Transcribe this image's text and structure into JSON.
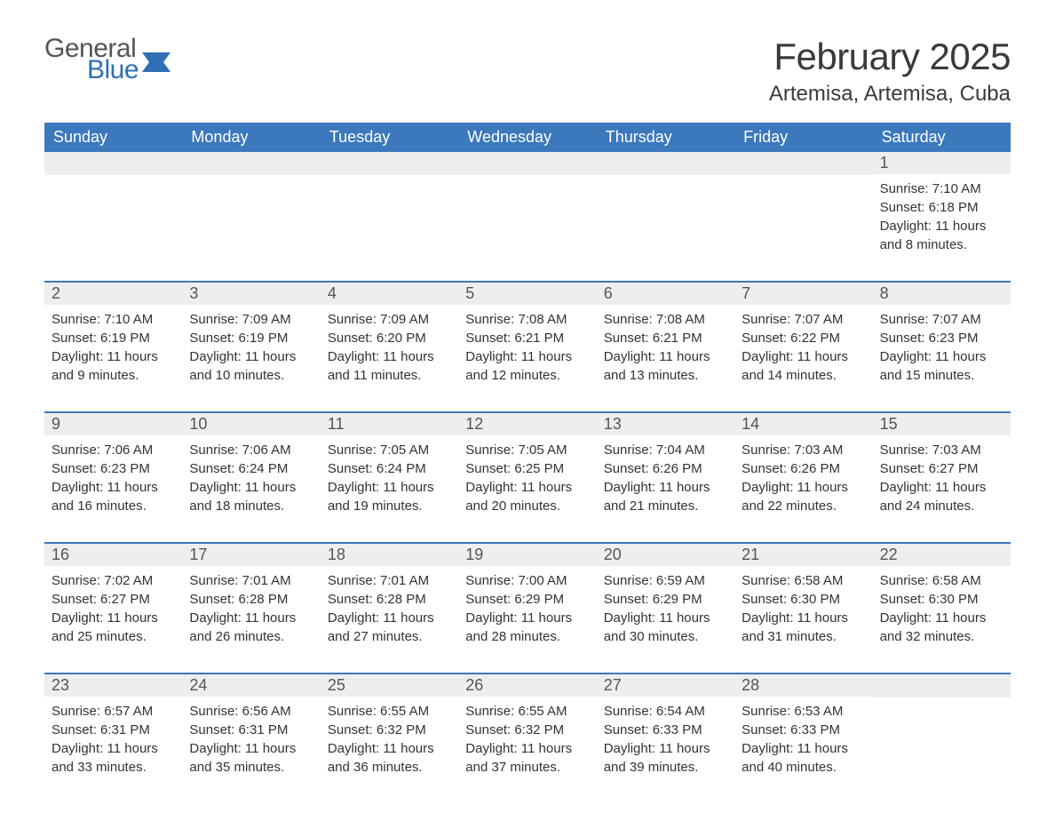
{
  "brand": {
    "word1": "General",
    "word2": "Blue",
    "color_general": "#555555",
    "color_blue": "#2e6fb5",
    "flag_color": "#2e6fb5"
  },
  "title": {
    "month_year": "February 2025",
    "location": "Artemisa, Artemisa, Cuba",
    "title_fontsize": 42,
    "location_fontsize": 24,
    "text_color": "#3a3a3a"
  },
  "styling": {
    "header_bg": "#3b78bc",
    "header_text": "#ffffff",
    "daynum_bg": "#eceeef",
    "daynum_text": "#555555",
    "body_text": "#333333",
    "row_divider": "#3b78bc",
    "page_bg": "#ffffff",
    "weekday_fontsize": 18,
    "daynum_fontsize": 18,
    "body_fontsize": 15
  },
  "weekdays": [
    "Sunday",
    "Monday",
    "Tuesday",
    "Wednesday",
    "Thursday",
    "Friday",
    "Saturday"
  ],
  "weeks": [
    [
      {
        "empty": true
      },
      {
        "empty": true
      },
      {
        "empty": true
      },
      {
        "empty": true
      },
      {
        "empty": true
      },
      {
        "empty": true
      },
      {
        "day": "1",
        "sunrise": "Sunrise: 7:10 AM",
        "sunset": "Sunset: 6:18 PM",
        "daylight1": "Daylight: 11 hours",
        "daylight2": "and 8 minutes."
      }
    ],
    [
      {
        "day": "2",
        "sunrise": "Sunrise: 7:10 AM",
        "sunset": "Sunset: 6:19 PM",
        "daylight1": "Daylight: 11 hours",
        "daylight2": "and 9 minutes."
      },
      {
        "day": "3",
        "sunrise": "Sunrise: 7:09 AM",
        "sunset": "Sunset: 6:19 PM",
        "daylight1": "Daylight: 11 hours",
        "daylight2": "and 10 minutes."
      },
      {
        "day": "4",
        "sunrise": "Sunrise: 7:09 AM",
        "sunset": "Sunset: 6:20 PM",
        "daylight1": "Daylight: 11 hours",
        "daylight2": "and 11 minutes."
      },
      {
        "day": "5",
        "sunrise": "Sunrise: 7:08 AM",
        "sunset": "Sunset: 6:21 PM",
        "daylight1": "Daylight: 11 hours",
        "daylight2": "and 12 minutes."
      },
      {
        "day": "6",
        "sunrise": "Sunrise: 7:08 AM",
        "sunset": "Sunset: 6:21 PM",
        "daylight1": "Daylight: 11 hours",
        "daylight2": "and 13 minutes."
      },
      {
        "day": "7",
        "sunrise": "Sunrise: 7:07 AM",
        "sunset": "Sunset: 6:22 PM",
        "daylight1": "Daylight: 11 hours",
        "daylight2": "and 14 minutes."
      },
      {
        "day": "8",
        "sunrise": "Sunrise: 7:07 AM",
        "sunset": "Sunset: 6:23 PM",
        "daylight1": "Daylight: 11 hours",
        "daylight2": "and 15 minutes."
      }
    ],
    [
      {
        "day": "9",
        "sunrise": "Sunrise: 7:06 AM",
        "sunset": "Sunset: 6:23 PM",
        "daylight1": "Daylight: 11 hours",
        "daylight2": "and 16 minutes."
      },
      {
        "day": "10",
        "sunrise": "Sunrise: 7:06 AM",
        "sunset": "Sunset: 6:24 PM",
        "daylight1": "Daylight: 11 hours",
        "daylight2": "and 18 minutes."
      },
      {
        "day": "11",
        "sunrise": "Sunrise: 7:05 AM",
        "sunset": "Sunset: 6:24 PM",
        "daylight1": "Daylight: 11 hours",
        "daylight2": "and 19 minutes."
      },
      {
        "day": "12",
        "sunrise": "Sunrise: 7:05 AM",
        "sunset": "Sunset: 6:25 PM",
        "daylight1": "Daylight: 11 hours",
        "daylight2": "and 20 minutes."
      },
      {
        "day": "13",
        "sunrise": "Sunrise: 7:04 AM",
        "sunset": "Sunset: 6:26 PM",
        "daylight1": "Daylight: 11 hours",
        "daylight2": "and 21 minutes."
      },
      {
        "day": "14",
        "sunrise": "Sunrise: 7:03 AM",
        "sunset": "Sunset: 6:26 PM",
        "daylight1": "Daylight: 11 hours",
        "daylight2": "and 22 minutes."
      },
      {
        "day": "15",
        "sunrise": "Sunrise: 7:03 AM",
        "sunset": "Sunset: 6:27 PM",
        "daylight1": "Daylight: 11 hours",
        "daylight2": "and 24 minutes."
      }
    ],
    [
      {
        "day": "16",
        "sunrise": "Sunrise: 7:02 AM",
        "sunset": "Sunset: 6:27 PM",
        "daylight1": "Daylight: 11 hours",
        "daylight2": "and 25 minutes."
      },
      {
        "day": "17",
        "sunrise": "Sunrise: 7:01 AM",
        "sunset": "Sunset: 6:28 PM",
        "daylight1": "Daylight: 11 hours",
        "daylight2": "and 26 minutes."
      },
      {
        "day": "18",
        "sunrise": "Sunrise: 7:01 AM",
        "sunset": "Sunset: 6:28 PM",
        "daylight1": "Daylight: 11 hours",
        "daylight2": "and 27 minutes."
      },
      {
        "day": "19",
        "sunrise": "Sunrise: 7:00 AM",
        "sunset": "Sunset: 6:29 PM",
        "daylight1": "Daylight: 11 hours",
        "daylight2": "and 28 minutes."
      },
      {
        "day": "20",
        "sunrise": "Sunrise: 6:59 AM",
        "sunset": "Sunset: 6:29 PM",
        "daylight1": "Daylight: 11 hours",
        "daylight2": "and 30 minutes."
      },
      {
        "day": "21",
        "sunrise": "Sunrise: 6:58 AM",
        "sunset": "Sunset: 6:30 PM",
        "daylight1": "Daylight: 11 hours",
        "daylight2": "and 31 minutes."
      },
      {
        "day": "22",
        "sunrise": "Sunrise: 6:58 AM",
        "sunset": "Sunset: 6:30 PM",
        "daylight1": "Daylight: 11 hours",
        "daylight2": "and 32 minutes."
      }
    ],
    [
      {
        "day": "23",
        "sunrise": "Sunrise: 6:57 AM",
        "sunset": "Sunset: 6:31 PM",
        "daylight1": "Daylight: 11 hours",
        "daylight2": "and 33 minutes."
      },
      {
        "day": "24",
        "sunrise": "Sunrise: 6:56 AM",
        "sunset": "Sunset: 6:31 PM",
        "daylight1": "Daylight: 11 hours",
        "daylight2": "and 35 minutes."
      },
      {
        "day": "25",
        "sunrise": "Sunrise: 6:55 AM",
        "sunset": "Sunset: 6:32 PM",
        "daylight1": "Daylight: 11 hours",
        "daylight2": "and 36 minutes."
      },
      {
        "day": "26",
        "sunrise": "Sunrise: 6:55 AM",
        "sunset": "Sunset: 6:32 PM",
        "daylight1": "Daylight: 11 hours",
        "daylight2": "and 37 minutes."
      },
      {
        "day": "27",
        "sunrise": "Sunrise: 6:54 AM",
        "sunset": "Sunset: 6:33 PM",
        "daylight1": "Daylight: 11 hours",
        "daylight2": "and 39 minutes."
      },
      {
        "day": "28",
        "sunrise": "Sunrise: 6:53 AM",
        "sunset": "Sunset: 6:33 PM",
        "daylight1": "Daylight: 11 hours",
        "daylight2": "and 40 minutes."
      },
      {
        "empty": true
      }
    ]
  ]
}
